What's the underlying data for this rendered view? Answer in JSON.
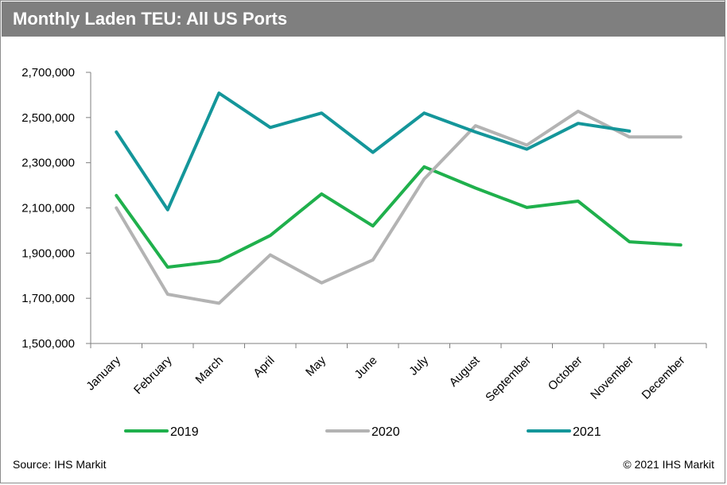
{
  "header": {
    "title": "Monthly Laden TEU: All US Ports"
  },
  "footer": {
    "source": "Source: IHS Markit",
    "copyright": "© 2021 IHS Markit"
  },
  "chart_data": {
    "type": "line",
    "title": "Monthly Laden TEU: All US Ports",
    "xlabel": "",
    "ylabel": "",
    "categories": [
      "January",
      "February",
      "March",
      "April",
      "May",
      "June",
      "July",
      "August",
      "September",
      "October",
      "November",
      "December"
    ],
    "ylim": [
      1500000,
      2700000
    ],
    "yticks": [
      1500000,
      1700000,
      1900000,
      2100000,
      2300000,
      2500000,
      2700000
    ],
    "ytick_labels": [
      "1,500,000",
      "1,700,000",
      "1,900,000",
      "2,100,000",
      "2,300,000",
      "2,500,000",
      "2,700,000"
    ],
    "grid": false,
    "legend": "bottom",
    "series": [
      {
        "name": "2019",
        "color": "#1fb04c",
        "values": [
          2155000,
          1838000,
          1865000,
          1978000,
          2162000,
          2020000,
          2282000,
          2188000,
          2102000,
          2130000,
          1950000,
          1936000
        ]
      },
      {
        "name": "2020",
        "color": "#b3b3b3",
        "values": [
          2100000,
          1718000,
          1678000,
          1892000,
          1768000,
          1870000,
          2228000,
          2464000,
          2378000,
          2528000,
          2414000,
          2414000
        ]
      },
      {
        "name": "2021",
        "color": "#14969a",
        "values": [
          2436000,
          2092000,
          2608000,
          2456000,
          2520000,
          2346000,
          2520000,
          2436000,
          2360000,
          2474000,
          2440000,
          null
        ]
      }
    ]
  }
}
